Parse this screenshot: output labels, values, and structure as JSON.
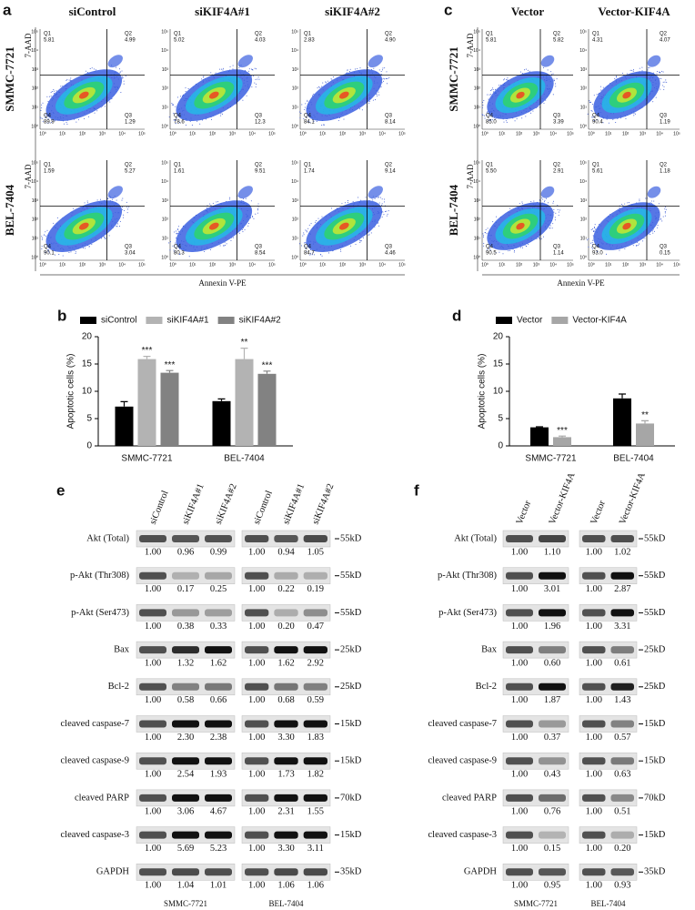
{
  "panel_a": {
    "letter": "a",
    "columns": [
      "siControl",
      "siKIF4A#1",
      "siKIF4A#2"
    ],
    "rows": [
      "SMMC-7721",
      "BEL-7404"
    ],
    "y_label": "7-AAD",
    "x_label": "Annexin V-PE",
    "axis_ticks": [
      "10⁰",
      "10¹",
      "10²",
      "10³",
      "10⁴",
      "10⁵"
    ],
    "quadrants": [
      "Q1",
      "Q2",
      "Q3",
      "Q4"
    ],
    "plots": [
      [
        [
          "5.81",
          "4.99",
          "1.29",
          "89.9"
        ],
        [
          "5.02",
          "4.03",
          "12.3",
          "78.6"
        ],
        [
          "2.83",
          "4.90",
          "8.14",
          "84.1"
        ]
      ],
      [
        [
          "1.59",
          "5.27",
          "3.04",
          "90.1"
        ],
        [
          "1.61",
          "9.51",
          "8.54",
          "80.3"
        ],
        [
          "1.74",
          "9.14",
          "4.46",
          "84.7"
        ]
      ]
    ]
  },
  "panel_c": {
    "letter": "c",
    "columns": [
      "Vector",
      "Vector-KIF4A"
    ],
    "rows": [
      "SMMC-7721",
      "BEL-7404"
    ],
    "y_label": "7-AAD",
    "x_label": "Annexin V-PE",
    "axis_ticks": [
      "10⁰",
      "10¹",
      "10²",
      "10³",
      "10⁴",
      "10⁵"
    ],
    "quadrants": [
      "Q1",
      "Q2",
      "Q3",
      "Q4"
    ],
    "plots": [
      [
        [
          "5.81",
          "5.82",
          "3.39",
          "85.0"
        ],
        [
          "4.31",
          "4.07",
          "1.19",
          "90.4"
        ]
      ],
      [
        [
          "5.50",
          "2.91",
          "1.14",
          "90.5"
        ],
        [
          "5.61",
          "1.18",
          "0.15",
          "93.0"
        ]
      ]
    ]
  },
  "chart_data": [
    {
      "type": "bar",
      "letter": "b",
      "y_label": "Apoptotic cells (%)",
      "categories": [
        "SMMC-7721",
        "BEL-7404"
      ],
      "ylim": [
        0,
        20
      ],
      "yticks": [
        0,
        5,
        10,
        15,
        20
      ],
      "series": [
        {
          "name": "siControl",
          "color": "#000000",
          "values": [
            7.2,
            8.2
          ],
          "errors": [
            0.9,
            0.4
          ]
        },
        {
          "name": "siKIF4A#1",
          "color": "#b3b3b3",
          "values": [
            15.9,
            15.9
          ],
          "errors": [
            0.5,
            2.0
          ],
          "significance": [
            "***",
            "**"
          ]
        },
        {
          "name": "siKIF4A#2",
          "color": "#828282",
          "values": [
            13.4,
            13.2
          ],
          "errors": [
            0.4,
            0.5
          ],
          "significance": [
            "***",
            "***"
          ]
        }
      ]
    },
    {
      "type": "bar",
      "letter": "d",
      "y_label": "Apoptotic cells (%)",
      "categories": [
        "SMMC-7721",
        "BEL-7404"
      ],
      "ylim": [
        0,
        20
      ],
      "yticks": [
        0,
        5,
        10,
        15,
        20
      ],
      "series": [
        {
          "name": "Vector",
          "color": "#000000",
          "values": [
            3.4,
            8.7
          ],
          "errors": [
            0.1,
            0.8
          ]
        },
        {
          "name": "Vector-KIF4A",
          "color": "#a6a6a6",
          "values": [
            1.6,
            4.1
          ],
          "errors": [
            0.2,
            0.5
          ],
          "significance": [
            "***",
            "**"
          ]
        }
      ]
    }
  ],
  "panel_e": {
    "letter": "e",
    "lanes": [
      "siControl",
      "siKIF4A#1",
      "siKIF4A#2"
    ],
    "cell_lines": [
      "SMMC-7721",
      "BEL-7404"
    ],
    "rows": [
      {
        "label": "Akt (Total)",
        "kd": "55kD",
        "values": [
          [
            "1.00",
            "0.96",
            "0.99"
          ],
          [
            "1.00",
            "0.94",
            "1.05"
          ]
        ]
      },
      {
        "label": "p-Akt (Thr308)",
        "kd": "55kD",
        "values": [
          [
            "1.00",
            "0.17",
            "0.25"
          ],
          [
            "1.00",
            "0.22",
            "0.19"
          ]
        ]
      },
      {
        "label": "p-Akt (Ser473)",
        "kd": "55kD",
        "values": [
          [
            "1.00",
            "0.38",
            "0.33"
          ],
          [
            "1.00",
            "0.20",
            "0.47"
          ]
        ]
      },
      {
        "label": "Bax",
        "kd": "25kD",
        "values": [
          [
            "1.00",
            "1.32",
            "1.62"
          ],
          [
            "1.00",
            "1.62",
            "2.92"
          ]
        ]
      },
      {
        "label": "Bcl-2",
        "kd": "25kD",
        "values": [
          [
            "1.00",
            "0.58",
            "0.66"
          ],
          [
            "1.00",
            "0.68",
            "0.59"
          ]
        ]
      },
      {
        "label": "cleaved caspase-7",
        "kd": "15kD",
        "values": [
          [
            "1.00",
            "2.30",
            "2.38"
          ],
          [
            "1.00",
            "3.30",
            "1.83"
          ]
        ]
      },
      {
        "label": "cleaved caspase-9",
        "kd": "15kD",
        "values": [
          [
            "1.00",
            "2.54",
            "1.93"
          ],
          [
            "1.00",
            "1.73",
            "1.82"
          ]
        ]
      },
      {
        "label": "cleaved PARP",
        "kd": "70kD",
        "values": [
          [
            "1.00",
            "3.06",
            "4.67"
          ],
          [
            "1.00",
            "2.31",
            "1.55"
          ]
        ]
      },
      {
        "label": "cleaved caspase-3",
        "kd": "15kD",
        "values": [
          [
            "1.00",
            "5.69",
            "5.23"
          ],
          [
            "1.00",
            "3.30",
            "3.11"
          ]
        ]
      },
      {
        "label": "GAPDH",
        "kd": "35kD",
        "values": [
          [
            "1.00",
            "1.04",
            "1.01"
          ],
          [
            "1.00",
            "1.06",
            "1.06"
          ]
        ]
      }
    ]
  },
  "panel_f": {
    "letter": "f",
    "lanes": [
      "Vector",
      "Vector-KIF4A"
    ],
    "cell_lines": [
      "SMMC-7721",
      "BEL-7404"
    ],
    "rows": [
      {
        "label": "Akt (Total)",
        "kd": "55kD",
        "values": [
          [
            "1.00",
            "1.10"
          ],
          [
            "1.00",
            "1.02"
          ]
        ]
      },
      {
        "label": "p-Akt (Thr308)",
        "kd": "55kD",
        "values": [
          [
            "1.00",
            "3.01"
          ],
          [
            "1.00",
            "2.87"
          ]
        ]
      },
      {
        "label": "p-Akt (Ser473)",
        "kd": "55kD",
        "values": [
          [
            "1.00",
            "1.96"
          ],
          [
            "1.00",
            "3.31"
          ]
        ]
      },
      {
        "label": "Bax",
        "kd": "25kD",
        "values": [
          [
            "1.00",
            "0.60"
          ],
          [
            "1.00",
            "0.61"
          ]
        ]
      },
      {
        "label": "Bcl-2",
        "kd": "25kD",
        "values": [
          [
            "1.00",
            "1.87"
          ],
          [
            "1.00",
            "1.43"
          ]
        ]
      },
      {
        "label": "cleaved caspase-7",
        "kd": "15kD",
        "values": [
          [
            "1.00",
            "0.37"
          ],
          [
            "1.00",
            "0.57"
          ]
        ]
      },
      {
        "label": "cleaved caspase-9",
        "kd": "15kD",
        "values": [
          [
            "1.00",
            "0.43"
          ],
          [
            "1.00",
            "0.63"
          ]
        ]
      },
      {
        "label": "cleaved PARP",
        "kd": "70kD",
        "values": [
          [
            "1.00",
            "0.76"
          ],
          [
            "1.00",
            "0.51"
          ]
        ]
      },
      {
        "label": "cleaved caspase-3",
        "kd": "15kD",
        "values": [
          [
            "1.00",
            "0.15"
          ],
          [
            "1.00",
            "0.20"
          ]
        ]
      },
      {
        "label": "GAPDH",
        "kd": "35kD",
        "values": [
          [
            "1.00",
            "0.95"
          ],
          [
            "1.00",
            "0.93"
          ]
        ]
      }
    ]
  }
}
